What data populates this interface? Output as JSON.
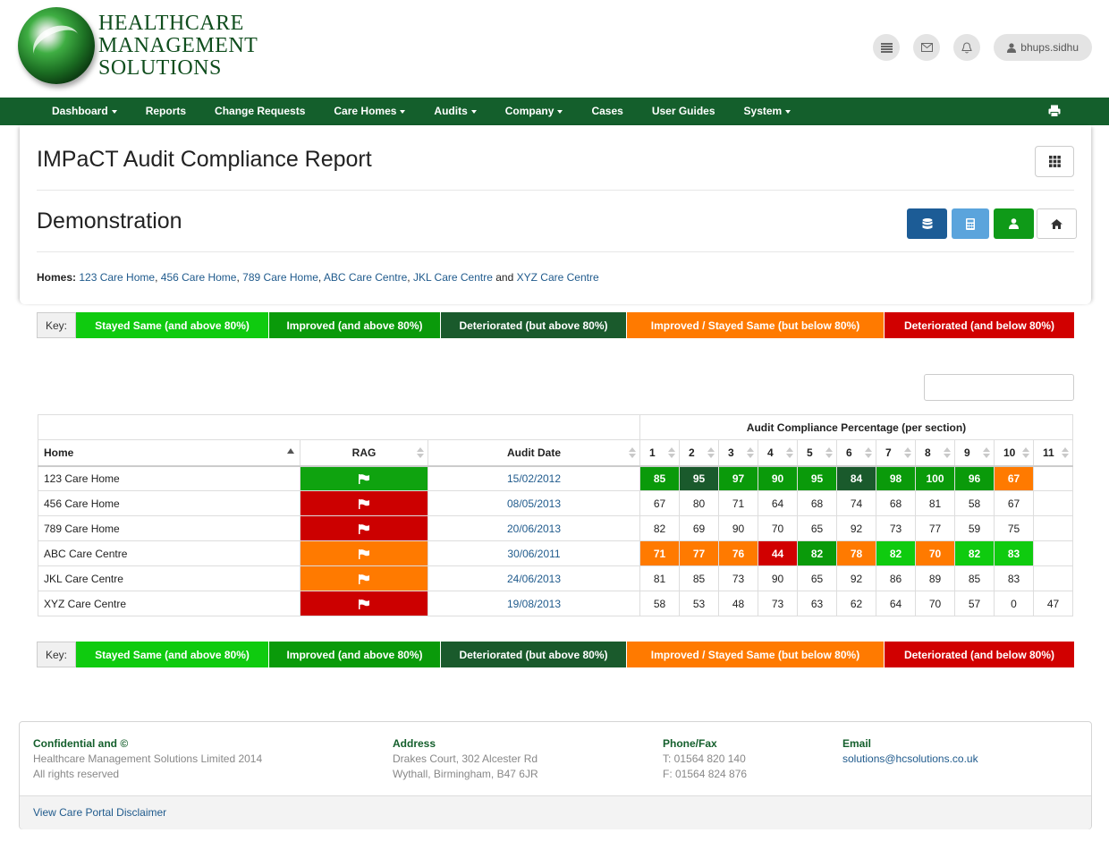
{
  "brand": {
    "line1": "HEALTHCARE",
    "line2": "MANAGEMENT",
    "line3": "SOLUTIONS"
  },
  "user": {
    "name": "bhups.sidhu"
  },
  "nav": [
    "Dashboard",
    "Reports",
    "Change Requests",
    "Care Homes",
    "Audits",
    "Company",
    "Cases",
    "User Guides",
    "System"
  ],
  "nav_dropdown": [
    true,
    false,
    false,
    true,
    true,
    true,
    false,
    false,
    true
  ],
  "page": {
    "title": "IMPaCT Audit Compliance Report",
    "subtitle": "Demonstration"
  },
  "homes": {
    "label": "Homes:",
    "list": [
      "123 Care Home",
      "456 Care Home",
      "789 Care Home",
      "ABC Care Centre",
      "JKL Care Centre",
      "XYZ Care Centre"
    ],
    "sep": ",",
    "conj": "and"
  },
  "key": {
    "label": "Key:",
    "items": [
      "Stayed Same (and above 80%)",
      "Improved (and above 80%)",
      "Deteriorated (but above 80%)",
      "Improved / Stayed Same (but below 80%)",
      "Deteriorated (and below 80%)"
    ]
  },
  "table": {
    "group_header": "Audit Compliance Percentage (per section)",
    "columns": [
      "Home",
      "RAG",
      "Audit Date"
    ],
    "sections": [
      "1",
      "2",
      "3",
      "4",
      "5",
      "6",
      "7",
      "8",
      "9",
      "10",
      "11"
    ],
    "rows": [
      {
        "home": "123 Care Home",
        "rag": "green",
        "date": "15/02/2012",
        "values": [
          "85",
          "95",
          "97",
          "90",
          "95",
          "84",
          "98",
          "100",
          "96",
          "67",
          ""
        ],
        "cls": [
          "g2",
          "g3",
          "g2",
          "g2",
          "g2",
          "g3",
          "g2",
          "g2",
          "g2",
          "o",
          ""
        ]
      },
      {
        "home": "456 Care Home",
        "rag": "red",
        "date": "08/05/2013",
        "values": [
          "67",
          "80",
          "71",
          "64",
          "68",
          "74",
          "68",
          "81",
          "58",
          "67",
          ""
        ],
        "cls": [
          "",
          "",
          "",
          "",
          "",
          "",
          "",
          "",
          "",
          "",
          ""
        ]
      },
      {
        "home": "789 Care Home",
        "rag": "red",
        "date": "20/06/2013",
        "values": [
          "82",
          "69",
          "90",
          "70",
          "65",
          "92",
          "73",
          "77",
          "59",
          "75",
          ""
        ],
        "cls": [
          "",
          "",
          "",
          "",
          "",
          "",
          "",
          "",
          "",
          "",
          ""
        ]
      },
      {
        "home": "ABC Care Centre",
        "rag": "orange",
        "date": "30/06/2011",
        "values": [
          "71",
          "77",
          "76",
          "44",
          "82",
          "78",
          "82",
          "70",
          "82",
          "83",
          ""
        ],
        "cls": [
          "o",
          "o",
          "o",
          "r",
          "g2",
          "o",
          "g1",
          "o",
          "g1",
          "g1",
          ""
        ]
      },
      {
        "home": "JKL Care Centre",
        "rag": "orange",
        "date": "24/06/2013",
        "values": [
          "81",
          "85",
          "73",
          "90",
          "65",
          "92",
          "86",
          "89",
          "85",
          "83",
          ""
        ],
        "cls": [
          "",
          "",
          "",
          "",
          "",
          "",
          "",
          "",
          "",
          "",
          ""
        ]
      },
      {
        "home": "XYZ Care Centre",
        "rag": "red",
        "date": "19/08/2013",
        "values": [
          "58",
          "53",
          "48",
          "73",
          "63",
          "62",
          "64",
          "70",
          "57",
          "0",
          "47"
        ],
        "cls": [
          "",
          "",
          "",
          "",
          "",
          "",
          "",
          "",
          "",
          "",
          ""
        ]
      }
    ]
  },
  "footer": {
    "c1_head": "Confidential and ©",
    "c1_l1": "Healthcare Management Solutions Limited 2014",
    "c1_l2": "All rights reserved",
    "c2_head": "Address",
    "c2_l1": "Drakes Court, 302 Alcester Rd",
    "c2_l2": "Wythall, Birmingham, B47 6JR",
    "c3_head": "Phone/Fax",
    "c3_l1": "T: 01564 820 140",
    "c3_l2": "F: 01564 824 876",
    "c4_head": "Email",
    "c4_l1": "solutions@hcsolutions.co.uk",
    "disclaimer": "View Care Portal Disclaimer"
  },
  "colors": {
    "nav": "#145f2c",
    "stayed_same": "#0fcb0f",
    "improved": "#0a9a0a",
    "deteriorated_above": "#1a5a2c",
    "below_80": "#ff7a00",
    "deteriorated_below": "#d10000"
  }
}
